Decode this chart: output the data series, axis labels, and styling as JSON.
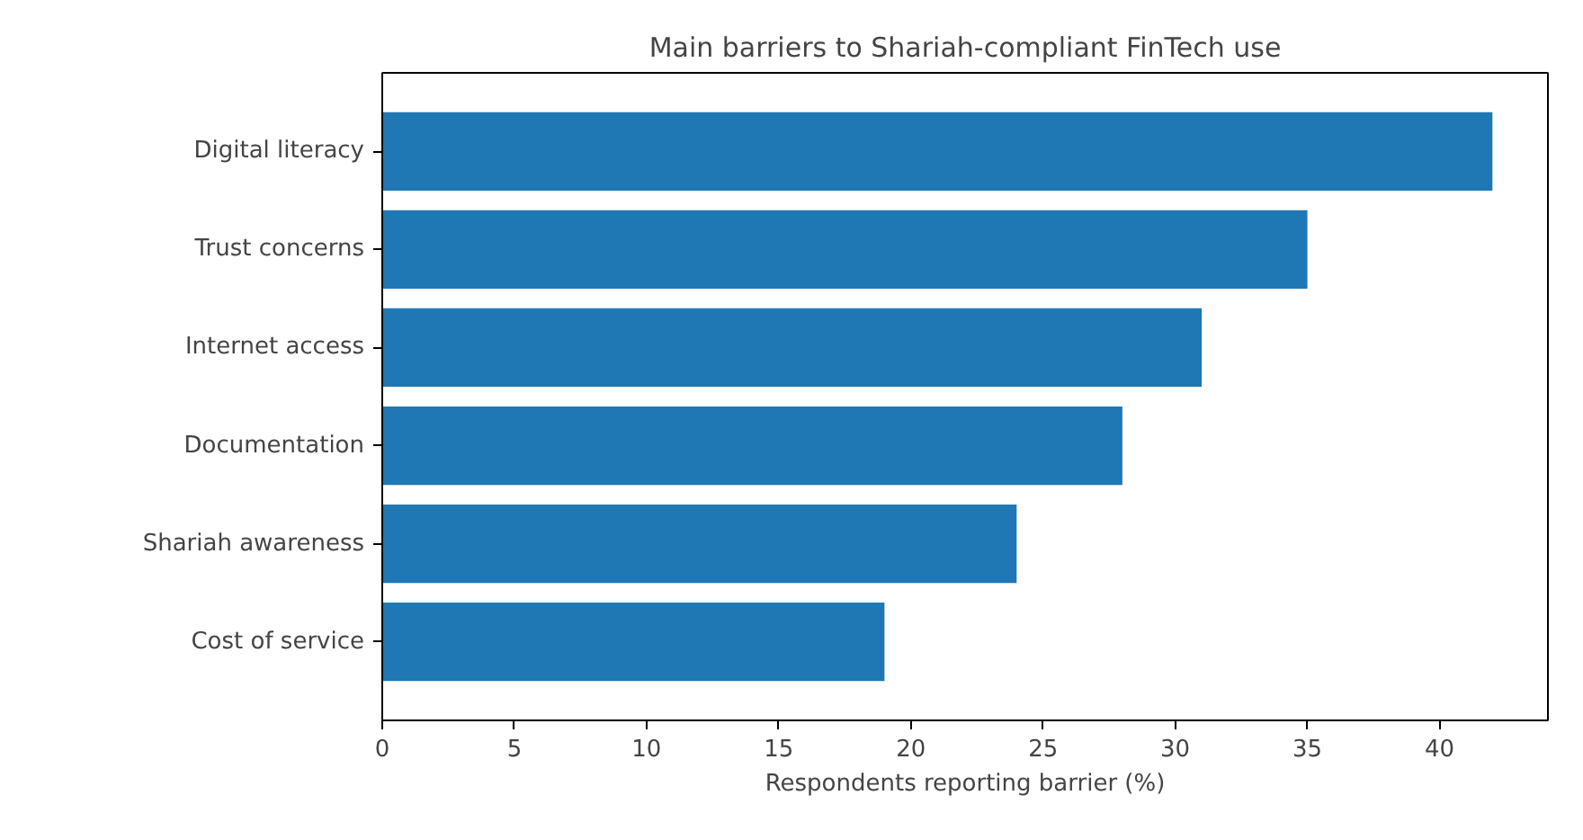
{
  "chart_data": {
    "type": "bar",
    "orientation": "horizontal",
    "title": "Main barriers to Shariah-compliant FinTech use",
    "xlabel": "Respondents reporting barrier (%)",
    "categories": [
      "Digital literacy",
      "Trust concerns",
      "Internet access",
      "Documentation",
      "Shariah awareness",
      "Cost of service"
    ],
    "values": [
      42,
      35,
      31,
      28,
      24,
      19
    ],
    "color": "#1f77b4",
    "xlim": [
      0,
      44.1
    ],
    "xticks": [
      0,
      5,
      10,
      15,
      20,
      25,
      30,
      35,
      40
    ],
    "grid": false
  }
}
